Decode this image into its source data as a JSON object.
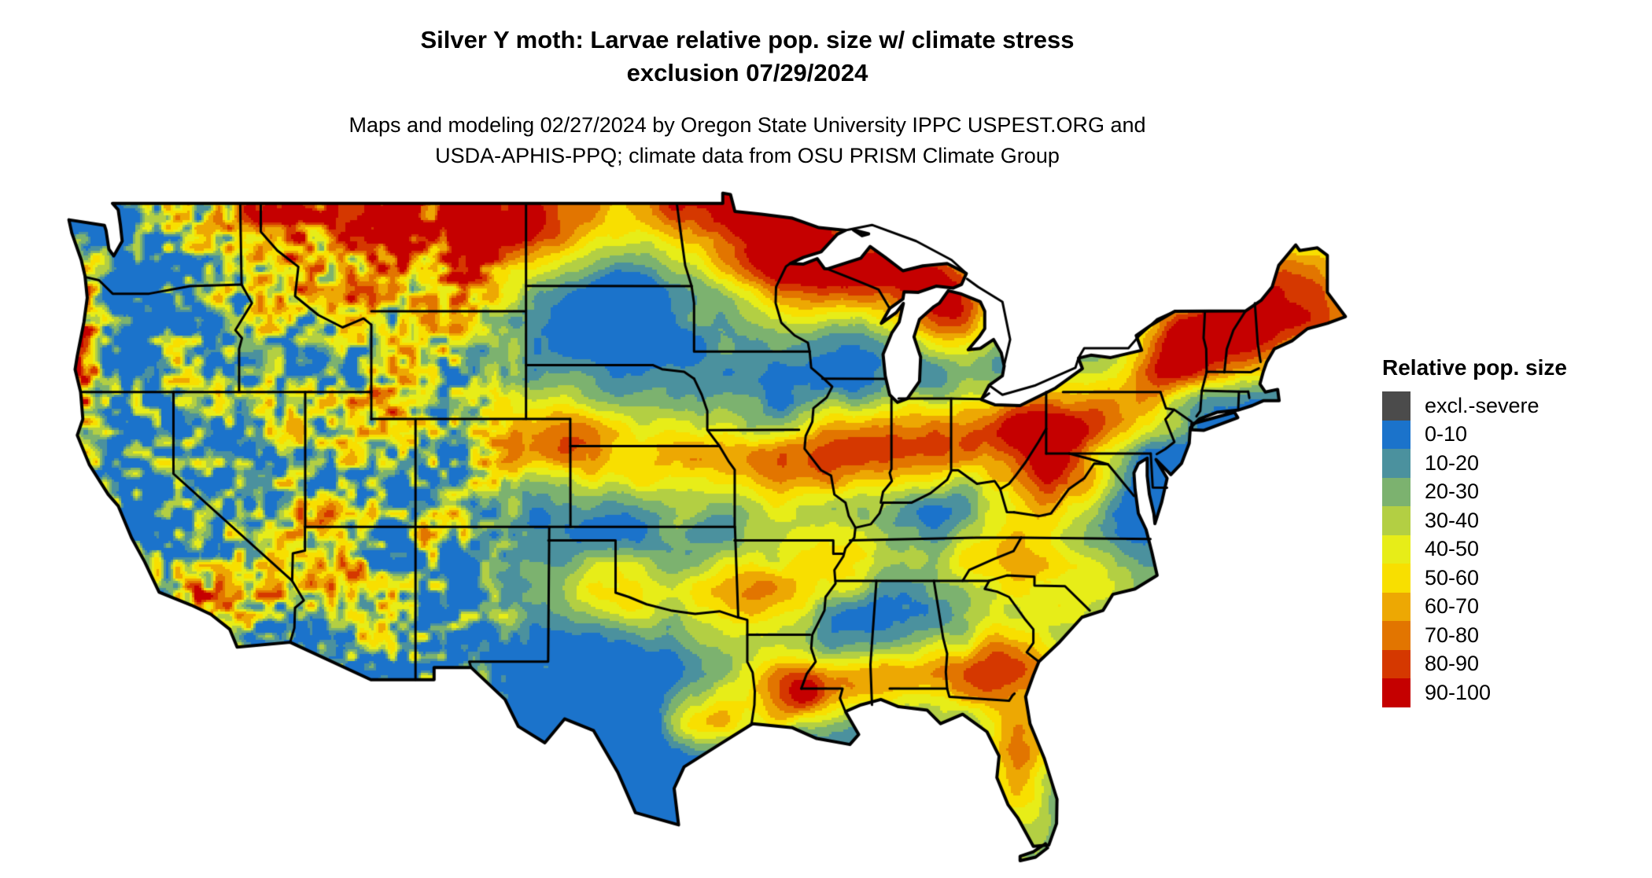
{
  "figure": {
    "title_line1": "Silver Y moth: Larvae relative pop. size w/ climate stress",
    "title_line2": "exclusion 07/29/2024",
    "subtitle_line1": "Maps and modeling 02/27/2024 by Oregon State University IPPC USPEST.ORG and",
    "subtitle_line2": "USDA-APHIS-PPQ; climate data from OSU PRISM Climate Group"
  },
  "legend": {
    "title": "Relative pop. size",
    "items": [
      {
        "label": "excl.-severe",
        "color": "#4b4b4b"
      },
      {
        "label": "0-10",
        "color": "#1b73cb"
      },
      {
        "label": "10-20",
        "color": "#4b919e"
      },
      {
        "label": "20-30",
        "color": "#7cb26f"
      },
      {
        "label": "30-40",
        "color": "#b3cf43"
      },
      {
        "label": "40-50",
        "color": "#e7ed18"
      },
      {
        "label": "50-60",
        "color": "#f8df00"
      },
      {
        "label": "60-70",
        "color": "#eda803"
      },
      {
        "label": "70-80",
        "color": "#e27500"
      },
      {
        "label": "80-90",
        "color": "#d53800"
      },
      {
        "label": "90-100",
        "color": "#c50000"
      }
    ]
  },
  "map": {
    "region": "conterminous United States",
    "background_color": "#ffffff",
    "boundary_color": "#000000"
  }
}
